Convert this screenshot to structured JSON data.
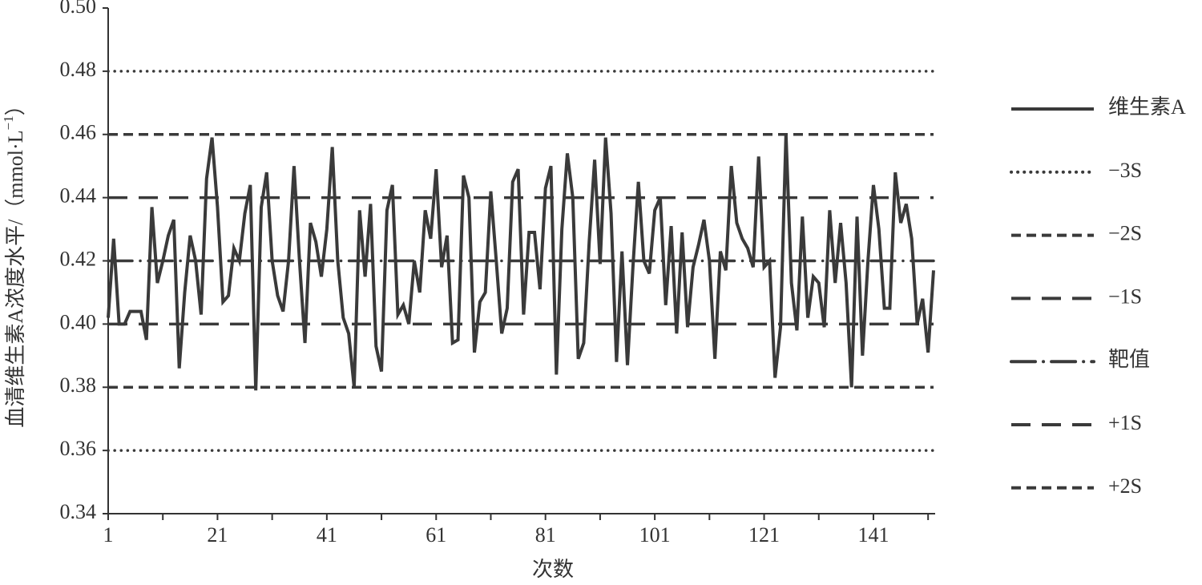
{
  "chart_data": {
    "type": "line",
    "ylabel": {
      "text": "血清维生素A浓度水平/（mmol·L",
      "superscript": "−1",
      "suffix": "）"
    },
    "xlabel": "次数",
    "xlim": [
      1,
      152
    ],
    "xticks": [
      1,
      21,
      41,
      61,
      81,
      101,
      121,
      141
    ],
    "xminorticks": [
      11,
      31,
      51,
      71,
      91,
      111,
      131,
      151
    ],
    "ylim": [
      0.34,
      0.5
    ],
    "yticks": [
      {
        "value": 0.34,
        "label": "0.34"
      },
      {
        "value": 0.36,
        "label": "0.36"
      },
      {
        "value": 0.38,
        "label": "0.38"
      },
      {
        "value": 0.4,
        "label": "0.40"
      },
      {
        "value": 0.42,
        "label": "0.42"
      },
      {
        "value": 0.44,
        "label": "0.44"
      },
      {
        "value": 0.46,
        "label": "0.46"
      },
      {
        "value": 0.48,
        "label": "0.48"
      },
      {
        "value": 0.5,
        "label": "0.50"
      }
    ],
    "x": [
      1,
      2,
      3,
      4,
      5,
      6,
      7,
      8,
      9,
      10,
      11,
      12,
      13,
      14,
      15,
      16,
      17,
      18,
      19,
      20,
      21,
      22,
      23,
      24,
      25,
      26,
      27,
      28,
      29,
      30,
      31,
      32,
      33,
      34,
      35,
      36,
      37,
      38,
      39,
      40,
      41,
      42,
      43,
      44,
      45,
      46,
      47,
      48,
      49,
      50,
      51,
      52,
      53,
      54,
      55,
      56,
      57,
      58,
      59,
      60,
      61,
      62,
      63,
      64,
      65,
      66,
      67,
      68,
      69,
      70,
      71,
      72,
      73,
      74,
      75,
      76,
      77,
      78,
      79,
      80,
      81,
      82,
      83,
      84,
      85,
      86,
      87,
      88,
      89,
      90,
      91,
      92,
      93,
      94,
      95,
      96,
      97,
      98,
      99,
      100,
      101,
      102,
      103,
      104,
      105,
      106,
      107,
      108,
      109,
      110,
      111,
      112,
      113,
      114,
      115,
      116,
      117,
      118,
      119,
      120,
      121,
      122,
      123,
      124,
      125,
      126,
      127,
      128,
      129,
      130,
      131,
      132,
      133,
      134,
      135,
      136,
      137,
      138,
      139,
      140,
      141,
      142,
      143,
      144,
      145,
      146,
      147,
      148,
      149,
      150,
      151,
      152
    ],
    "series": [
      {
        "name": "维生素A",
        "color": "#3a3a3a",
        "values": [
          0.402,
          0.427,
          0.4,
          0.4,
          0.404,
          0.404,
          0.404,
          0.395,
          0.437,
          0.413,
          0.42,
          0.428,
          0.433,
          0.386,
          0.41,
          0.428,
          0.42,
          0.403,
          0.446,
          0.459,
          0.437,
          0.407,
          0.409,
          0.424,
          0.42,
          0.435,
          0.444,
          0.379,
          0.437,
          0.448,
          0.42,
          0.409,
          0.404,
          0.42,
          0.45,
          0.42,
          0.394,
          0.432,
          0.426,
          0.415,
          0.43,
          0.456,
          0.42,
          0.402,
          0.397,
          0.38,
          0.436,
          0.415,
          0.438,
          0.393,
          0.385,
          0.436,
          0.444,
          0.403,
          0.406,
          0.4,
          0.42,
          0.41,
          0.436,
          0.427,
          0.449,
          0.418,
          0.428,
          0.394,
          0.395,
          0.447,
          0.44,
          0.391,
          0.407,
          0.41,
          0.442,
          0.42,
          0.397,
          0.405,
          0.445,
          0.449,
          0.403,
          0.429,
          0.429,
          0.411,
          0.443,
          0.45,
          0.384,
          0.43,
          0.454,
          0.44,
          0.389,
          0.394,
          0.426,
          0.452,
          0.419,
          0.459,
          0.435,
          0.388,
          0.423,
          0.387,
          0.418,
          0.445,
          0.42,
          0.416,
          0.436,
          0.44,
          0.406,
          0.431,
          0.397,
          0.429,
          0.399,
          0.418,
          0.425,
          0.433,
          0.42,
          0.389,
          0.423,
          0.417,
          0.45,
          0.432,
          0.427,
          0.424,
          0.418,
          0.453,
          0.418,
          0.42,
          0.383,
          0.399,
          0.46,
          0.413,
          0.398,
          0.434,
          0.402,
          0.415,
          0.413,
          0.399,
          0.436,
          0.413,
          0.432,
          0.413,
          0.38,
          0.434,
          0.39,
          0.42,
          0.444,
          0.43,
          0.405,
          0.405,
          0.448,
          0.432,
          0.438,
          0.427,
          0.4,
          0.408,
          0.391,
          0.417
        ]
      }
    ],
    "reference_lines": [
      {
        "name": "−3S",
        "style": "dotted",
        "color": "#3a3a3a",
        "values": [
          0.36,
          0.48
        ]
      },
      {
        "name": "−2S",
        "style": "short-dash",
        "color": "#3a3a3a",
        "values": [
          0.38
        ]
      },
      {
        "name": "−1S",
        "style": "long-dash",
        "color": "#3a3a3a",
        "values": [
          0.4
        ]
      },
      {
        "name": "靶值",
        "style": "dash-dot",
        "color": "#3a3a3a",
        "values": [
          0.42
        ]
      },
      {
        "name": "+1S",
        "style": "long-dash",
        "color": "#3a3a3a",
        "values": [
          0.44
        ]
      },
      {
        "name": "+2S",
        "style": "short-dash",
        "color": "#3a3a3a",
        "values": [
          0.46
        ]
      }
    ],
    "legend": "right"
  }
}
